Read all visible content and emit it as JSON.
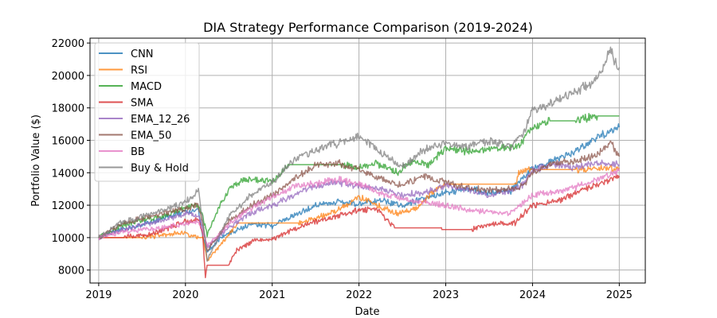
{
  "chart_data": {
    "type": "line",
    "title": "DIA Strategy Performance Comparison (2019-2024)",
    "xlabel": "Date",
    "ylabel": "Portfolio Value ($)",
    "xlim": [
      2018.9,
      2025.3
    ],
    "ylim": [
      7200,
      22300
    ],
    "x_ticks": [
      2019,
      2020,
      2021,
      2022,
      2023,
      2024,
      2025
    ],
    "y_ticks": [
      8000,
      10000,
      12000,
      14000,
      16000,
      18000,
      20000,
      22000
    ],
    "x_tick_labels": [
      "2019",
      "2020",
      "2021",
      "2022",
      "2023",
      "2024",
      "2025"
    ],
    "y_tick_labels": [
      "8000",
      "10000",
      "12000",
      "14000",
      "16000",
      "18000",
      "20000",
      "22000"
    ],
    "grid": true,
    "legend_position": "top-left",
    "series": [
      {
        "name": "CNN",
        "color": "#1f77b4",
        "x": [
          2019.0,
          2019.25,
          2019.5,
          2019.75,
          2020.0,
          2020.15,
          2020.2,
          2020.25,
          2020.4,
          2020.6,
          2020.8,
          2021.0,
          2021.25,
          2021.5,
          2021.75,
          2022.0,
          2022.25,
          2022.5,
          2022.75,
          2023.0,
          2023.25,
          2023.5,
          2023.75,
          2024.0,
          2024.25,
          2024.5,
          2024.75,
          2025.0
        ],
        "y": [
          10000,
          10500,
          10800,
          11200,
          11600,
          11700,
          10000,
          9100,
          10000,
          10500,
          10900,
          10700,
          11400,
          12000,
          12200,
          12100,
          12300,
          12000,
          12400,
          12800,
          13000,
          12800,
          12900,
          14300,
          14800,
          15300,
          16200,
          16800
        ]
      },
      {
        "name": "RSI",
        "color": "#ff7f0e",
        "x": [
          2019.0,
          2019.5,
          2020.0,
          2020.15,
          2020.2,
          2020.25,
          2020.4,
          2020.6,
          2021.0,
          2021.3,
          2021.5,
          2021.8,
          2022.0,
          2022.2,
          2022.45,
          2022.7,
          2022.85,
          2023.0,
          2023.3,
          2023.8,
          2023.85,
          2024.0,
          2024.5,
          2025.0
        ],
        "y": [
          10000,
          10000,
          10300,
          10000,
          10000,
          8600,
          9500,
          10900,
          10900,
          10900,
          11200,
          11800,
          12500,
          12000,
          11500,
          11900,
          12800,
          13300,
          13300,
          13300,
          14100,
          14200,
          14200,
          14300
        ]
      },
      {
        "name": "MACD",
        "color": "#2ca02c",
        "x": [
          2019.0,
          2019.25,
          2019.5,
          2019.75,
          2020.0,
          2020.15,
          2020.2,
          2020.25,
          2020.4,
          2020.5,
          2020.7,
          2021.0,
          2021.2,
          2021.5,
          2021.8,
          2022.0,
          2022.2,
          2022.45,
          2022.6,
          2022.8,
          2023.0,
          2023.3,
          2023.6,
          2023.85,
          2023.95,
          2024.2,
          2024.5,
          2024.75,
          2025.0
        ],
        "y": [
          10000,
          10700,
          11100,
          11300,
          11900,
          12000,
          11300,
          10200,
          12000,
          13000,
          13600,
          13500,
          14500,
          14500,
          14500,
          14300,
          14600,
          14000,
          14700,
          14500,
          15500,
          15300,
          15500,
          15600,
          16600,
          17200,
          17200,
          17500,
          17500
        ]
      },
      {
        "name": "SMA",
        "color": "#d62728",
        "x": [
          2019.0,
          2019.3,
          2019.6,
          2020.0,
          2020.15,
          2020.2,
          2020.23,
          2020.25,
          2020.5,
          2020.6,
          2020.8,
          2021.0,
          2021.25,
          2021.5,
          2021.75,
          2022.0,
          2022.2,
          2022.4,
          2022.41,
          2022.95,
          2022.96,
          2023.3,
          2023.5,
          2023.8,
          2024.0,
          2024.3,
          2024.6,
          2025.0
        ],
        "y": [
          10000,
          10000,
          10200,
          11000,
          11100,
          10200,
          7500,
          8300,
          8300,
          9300,
          9800,
          9900,
          10500,
          11000,
          11300,
          11700,
          11800,
          10700,
          10600,
          10600,
          10500,
          10500,
          10800,
          10900,
          12000,
          12300,
          13000,
          13800
        ]
      },
      {
        "name": "EMA_12_26",
        "color": "#9467bd",
        "x": [
          2019.0,
          2019.25,
          2019.5,
          2019.75,
          2020.0,
          2020.15,
          2020.2,
          2020.25,
          2020.5,
          2020.75,
          2021.0,
          2021.25,
          2021.5,
          2021.75,
          2022.0,
          2022.25,
          2022.5,
          2022.75,
          2023.0,
          2023.25,
          2023.5,
          2023.75,
          2023.9,
          2024.0,
          2024.25,
          2024.5,
          2024.75,
          2025.0
        ],
        "y": [
          10000,
          10400,
          10800,
          11100,
          11500,
          11400,
          10500,
          9400,
          10600,
          11500,
          12000,
          12600,
          13200,
          13400,
          13200,
          13000,
          12600,
          12800,
          13200,
          13000,
          12600,
          12900,
          13300,
          14200,
          14500,
          14300,
          14600,
          14500
        ]
      },
      {
        "name": "EMA_50",
        "color": "#8c564b",
        "x": [
          2019.0,
          2019.25,
          2019.5,
          2019.75,
          2020.0,
          2020.15,
          2020.2,
          2020.25,
          2020.5,
          2020.75,
          2021.0,
          2021.25,
          2021.5,
          2021.75,
          2022.0,
          2022.25,
          2022.5,
          2022.75,
          2023.0,
          2023.25,
          2023.5,
          2023.75,
          2023.9,
          2024.0,
          2024.25,
          2024.5,
          2024.75,
          2024.9,
          2025.0
        ],
        "y": [
          10000,
          10800,
          11200,
          11500,
          11800,
          12000,
          10800,
          9200,
          11000,
          12000,
          12600,
          13600,
          14500,
          14600,
          14200,
          13600,
          13200,
          13800,
          13400,
          13100,
          12900,
          13000,
          13200,
          14000,
          14600,
          14700,
          15100,
          15900,
          15000
        ]
      },
      {
        "name": "BB",
        "color": "#e377c2",
        "x": [
          2019.0,
          2019.25,
          2019.5,
          2019.75,
          2020.0,
          2020.15,
          2020.2,
          2020.25,
          2020.5,
          2020.75,
          2021.0,
          2021.25,
          2021.5,
          2021.75,
          2022.0,
          2022.25,
          2022.5,
          2022.75,
          2023.0,
          2023.25,
          2023.5,
          2023.75,
          2023.85,
          2024.0,
          2024.25,
          2024.5,
          2024.75,
          2025.0
        ],
        "y": [
          10000,
          10300,
          10500,
          10600,
          10900,
          11000,
          10300,
          9500,
          10800,
          11800,
          12500,
          13200,
          13300,
          13600,
          13300,
          12700,
          12400,
          12200,
          12000,
          11700,
          11600,
          11500,
          12000,
          12600,
          12800,
          13100,
          13600,
          14100
        ]
      },
      {
        "name": "Buy & Hold",
        "color": "#7f7f7f",
        "x": [
          2019.0,
          2019.25,
          2019.5,
          2019.75,
          2020.0,
          2020.15,
          2020.2,
          2020.25,
          2020.5,
          2020.75,
          2021.0,
          2021.25,
          2021.5,
          2021.75,
          2022.0,
          2022.25,
          2022.5,
          2022.75,
          2023.0,
          2023.25,
          2023.5,
          2023.75,
          2023.9,
          2024.0,
          2024.25,
          2024.5,
          2024.75,
          2024.9,
          2024.95,
          2025.0
        ],
        "y": [
          10000,
          10900,
          11300,
          11700,
          12200,
          12900,
          11000,
          8600,
          11300,
          12600,
          13400,
          14800,
          15400,
          15800,
          16300,
          15200,
          14400,
          15400,
          15800,
          15600,
          16000,
          15600,
          16500,
          17800,
          18300,
          19000,
          19800,
          21600,
          20800,
          20500
        ]
      }
    ]
  }
}
